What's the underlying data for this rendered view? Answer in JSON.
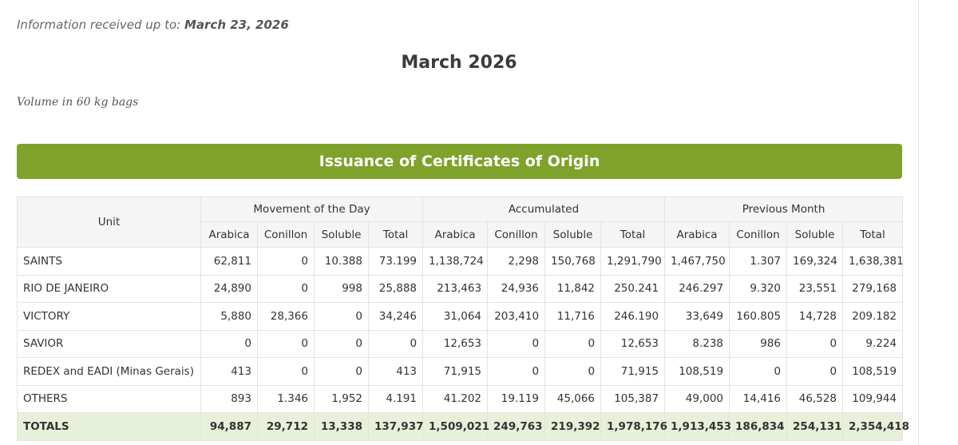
{
  "info": {
    "label": "Information received up to:",
    "date": "March 23, 2026"
  },
  "title": "March 2026",
  "volume_note": "Volume in 60 kg bags",
  "banner": "Issuance of Certificates of Origin",
  "table": {
    "unit_header": "Unit",
    "groups": [
      "Movement of the Day",
      "Accumulated",
      "Previous Month"
    ],
    "subheaders": [
      "Arabica",
      "Conillon",
      "Soluble",
      "Total"
    ],
    "rows": [
      {
        "unit": "SAINTS",
        "values": [
          "62,811",
          "0",
          "10.388",
          "73.199",
          "1,138,724",
          "2,298",
          "150,768",
          "1,291,790",
          "1,467,750",
          "1.307",
          "169,324",
          "1,638,381"
        ]
      },
      {
        "unit": "RIO DE JANEIRO",
        "values": [
          "24,890",
          "0",
          "998",
          "25,888",
          "213,463",
          "24,936",
          "11,842",
          "250.241",
          "246.297",
          "9.320",
          "23,551",
          "279,168"
        ]
      },
      {
        "unit": "VICTORY",
        "values": [
          "5,880",
          "28,366",
          "0",
          "34,246",
          "31,064",
          "203,410",
          "11,716",
          "246.190",
          "33,649",
          "160.805",
          "14,728",
          "209.182"
        ]
      },
      {
        "unit": "SAVIOR",
        "values": [
          "0",
          "0",
          "0",
          "0",
          "12,653",
          "0",
          "0",
          "12,653",
          "8.238",
          "986",
          "0",
          "9.224"
        ]
      },
      {
        "unit": "REDEX and EADI (Minas Gerais)",
        "values": [
          "413",
          "0",
          "0",
          "413",
          "71,915",
          "0",
          "0",
          "71,915",
          "108,519",
          "0",
          "0",
          "108,519"
        ]
      },
      {
        "unit": "OTHERS",
        "values": [
          "893",
          "1.346",
          "1,952",
          "4.191",
          "41.202",
          "19.119",
          "45,066",
          "105,387",
          "49,000",
          "14,416",
          "46,528",
          "109,944"
        ]
      }
    ],
    "totals": {
      "unit": "TOTALS",
      "values": [
        "94,887",
        "29,712",
        "13,338",
        "137,937",
        "1,509,021",
        "249,763",
        "219,392",
        "1,978,176",
        "1,913,453",
        "186,834",
        "254,131",
        "2,354,418"
      ]
    }
  }
}
